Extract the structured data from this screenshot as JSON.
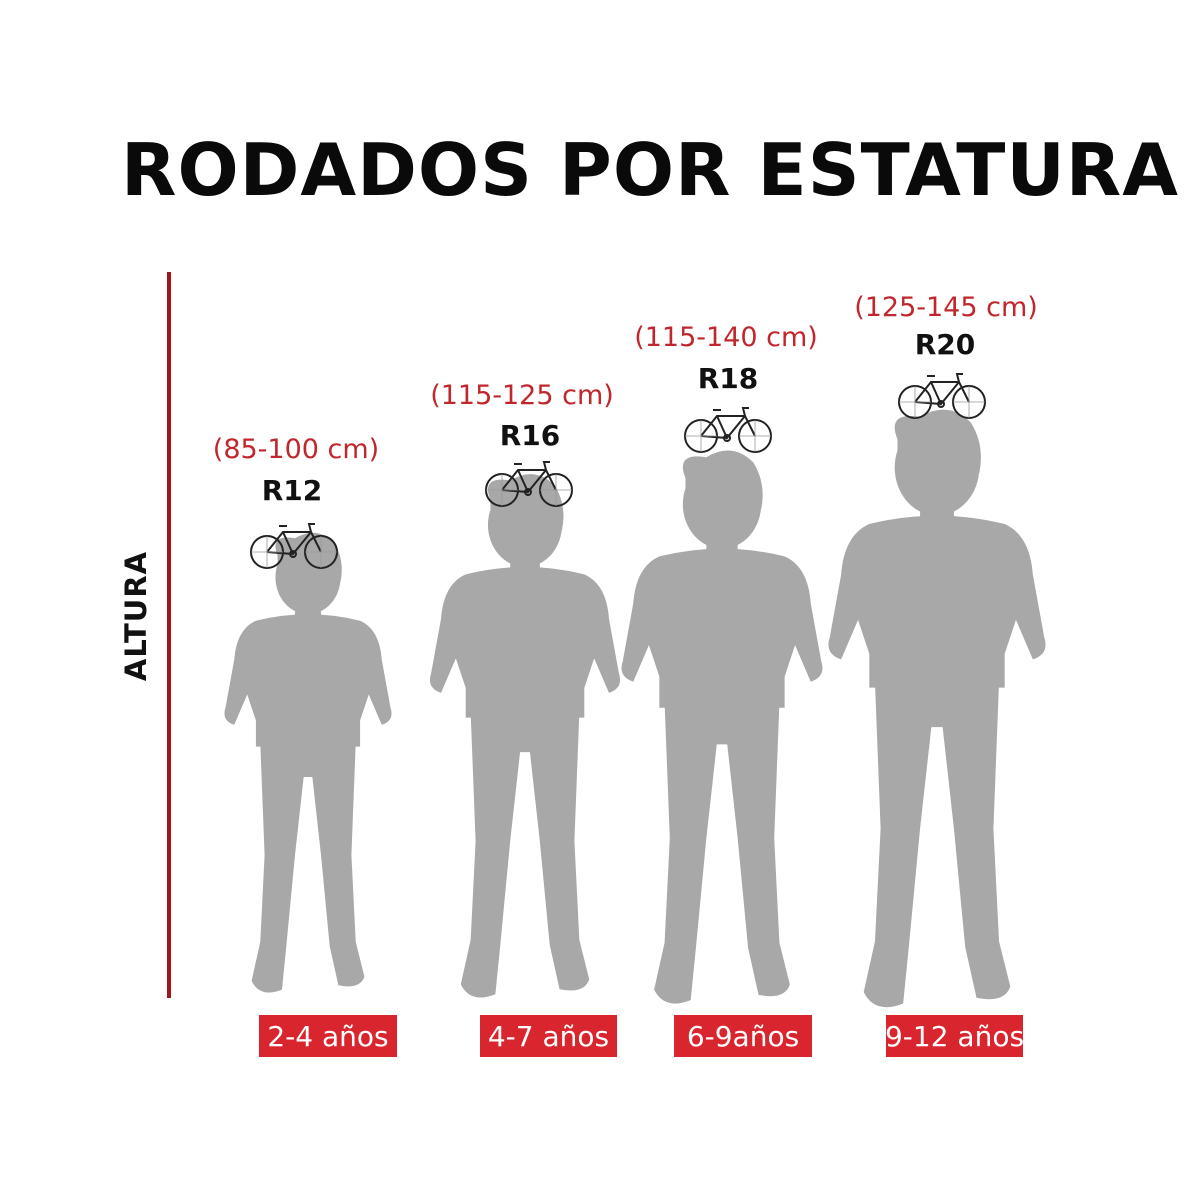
{
  "title": "RODADOS POR ESTATURA",
  "axis_label": "ALTURA",
  "colors": {
    "accent": "#d9262e",
    "range_text": "#c0272d",
    "silhouette": "#a8a8a8",
    "axis": "#a3151c"
  },
  "groups": [
    {
      "range": "(85-100 cm)",
      "size": "R12",
      "age": "2-4 años",
      "icon": "bicycle-icon"
    },
    {
      "range": "(115-125 cm)",
      "size": "R16",
      "age": "4-7 años",
      "icon": "bicycle-icon"
    },
    {
      "range": "(115-140 cm)",
      "size": "R18",
      "age": "6-9años",
      "icon": "bicycle-icon"
    },
    {
      "range": "(125-145 cm)",
      "size": "R20",
      "age": "9-12 años",
      "icon": "bicycle-icon"
    }
  ]
}
